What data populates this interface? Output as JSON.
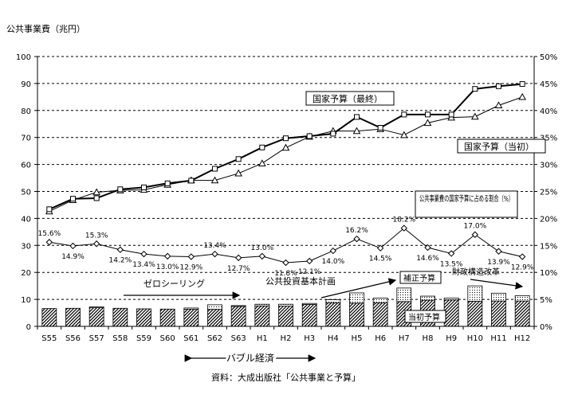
{
  "chart_data": {
    "type": "bar+line",
    "categories": [
      "S55",
      "S56",
      "S57",
      "S58",
      "S59",
      "S60",
      "S61",
      "S62",
      "S63",
      "H1",
      "H2",
      "H3",
      "H4",
      "H5",
      "H6",
      "H7",
      "H8",
      "H9",
      "H10",
      "H11",
      "H12"
    ],
    "y_left_label": "公共事業費（兆円）",
    "y_left_range": [
      0,
      100
    ],
    "y_left_ticks": [
      "0",
      "10",
      "20",
      "30",
      "40",
      "50",
      "60",
      "70",
      "80",
      "90",
      "100"
    ],
    "y_right_range": [
      0,
      50
    ],
    "y_right_ticks": [
      "0%",
      "5%",
      "10%",
      "15%",
      "20%",
      "25%",
      "30%",
      "35%",
      "40%",
      "45%",
      "50%"
    ],
    "gridlines": "dashed horizontal",
    "series": [
      {
        "name": "国家予算（最終）",
        "style": "line-square",
        "values": [
          43.4,
          47.3,
          47.5,
          50.8,
          51.5,
          53.0,
          54.0,
          58.4,
          62.0,
          66.3,
          69.7,
          70.5,
          71.4,
          77.6,
          73.6,
          78.5,
          78.5,
          78.5,
          88.0,
          89.0,
          89.8
        ]
      },
      {
        "name": "国家予算（当初）",
        "style": "line-triangle",
        "values": [
          42.6,
          46.8,
          49.7,
          50.4,
          50.6,
          52.5,
          54.1,
          54.1,
          56.7,
          60.4,
          66.2,
          70.3,
          72.4,
          72.4,
          73.1,
          70.9,
          75.4,
          77.4,
          77.7,
          81.9,
          85.0
        ]
      },
      {
        "name": "公共事業費の国家予算に占める割合（%）",
        "style": "line-diamond",
        "axis": "right",
        "values": [
          15.6,
          14.9,
          15.3,
          14.2,
          13.4,
          13.0,
          12.9,
          13.4,
          12.7,
          13.0,
          11.8,
          12.1,
          14.0,
          16.2,
          14.5,
          18.2,
          14.6,
          13.5,
          17.0,
          13.9,
          12.9
        ]
      },
      {
        "name": "当初予算",
        "style": "bar-hatched",
        "values": [
          6.6,
          6.7,
          6.9,
          6.7,
          6.5,
          6.4,
          6.3,
          6.3,
          7.4,
          7.6,
          7.5,
          8.1,
          8.7,
          8.6,
          8.7,
          9.2,
          9.7,
          9.8,
          9.3,
          9.4,
          9.4
        ]
      },
      {
        "name": "補正予算",
        "style": "bar-dotted-stack",
        "values": [
          0.0,
          0.0,
          0.3,
          0.0,
          0.0,
          0.0,
          0.5,
          1.7,
          0.3,
          0.6,
          0.7,
          0.4,
          1.2,
          3.8,
          1.8,
          5.0,
          1.5,
          0.7,
          5.7,
          2.9,
          2.0
        ]
      }
    ],
    "ratio_labels": [
      "15.6%",
      "14.9%",
      "15.3%",
      "14.2%",
      "13.4%",
      "13.0%",
      "12.9%",
      "13.4%",
      "12.7%",
      "13.0%",
      "11.8%",
      "12.1%",
      "14.0%",
      "16.2%",
      "14.5%",
      "18.2%",
      "14.6%",
      "13.5%",
      "17.0%",
      "13.9%",
      "12.9%"
    ],
    "annotations": {
      "zero_ceiling": "ゼロシーリング",
      "public_investment": "公共投資基本計画",
      "fiscal_reform": "財政構造改革",
      "bubble": "バブル経済",
      "source": "資料：大成出版社「公共事業と予算」"
    }
  },
  "colors": {
    "axis": "#000000",
    "grid": "#000000",
    "bar_fill": "#ffffff"
  }
}
